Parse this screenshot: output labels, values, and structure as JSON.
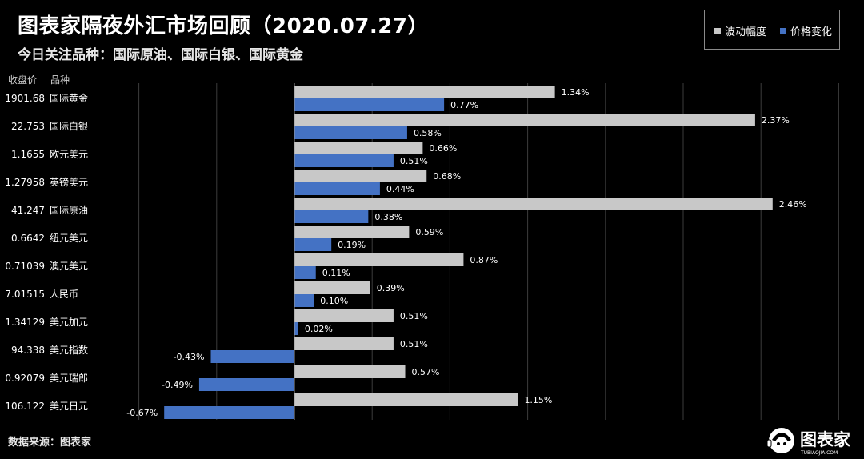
{
  "header": {
    "title": "图表家隔夜外汇市场回顾（2020.07.27）",
    "subtitle": "今日关注品种：国际原油、国际白银、国际黄金"
  },
  "legend": {
    "volatility_label": "波动幅度",
    "change_label": "价格变化",
    "volatility_color": "#c8c8c8",
    "change_color": "#4472c4"
  },
  "table_header": {
    "price": "收盘价",
    "name": "品种"
  },
  "footer": {
    "source": "数据来源：图表家",
    "logo_text": "图表家",
    "logo_subtext": "TUBIAOJIA.COM"
  },
  "chart_data": {
    "type": "bar",
    "orientation": "horizontal",
    "categories": [
      "国际黄金",
      "国际白银",
      "欧元美元",
      "英镑美元",
      "国际原油",
      "纽元美元",
      "澳元美元",
      "人民币",
      "美元加元",
      "美元指数",
      "美元瑞郎",
      "美元日元"
    ],
    "close_prices": [
      "1901.68",
      "22.753",
      "1.1655",
      "1.27958",
      "41.247",
      "0.6642",
      "0.71039",
      "7.01515",
      "1.34129",
      "94.338",
      "0.92079",
      "106.122"
    ],
    "series": [
      {
        "name": "波动幅度",
        "values": [
          1.34,
          2.37,
          0.66,
          0.68,
          2.46,
          0.59,
          0.87,
          0.39,
          0.51,
          0.51,
          0.57,
          1.15
        ],
        "labels": [
          "1.34%",
          "2.37%",
          "0.66%",
          "0.68%",
          "2.46%",
          "0.59%",
          "0.87%",
          "0.39%",
          "0.51%",
          "0.51%",
          "0.57%",
          "1.15%"
        ],
        "color": "#c8c8c8"
      },
      {
        "name": "价格变化",
        "values": [
          0.77,
          0.58,
          0.51,
          0.44,
          0.38,
          0.19,
          0.11,
          0.1,
          0.02,
          -0.43,
          -0.49,
          -0.67
        ],
        "labels": [
          "0.77%",
          "0.58%",
          "0.51%",
          "0.44%",
          "0.38%",
          "0.19%",
          "0.11%",
          "0.10%",
          "0.02%",
          "-0.43%",
          "-0.49%",
          "-0.67%"
        ],
        "color": "#4472c4"
      }
    ],
    "xlim": [
      -0.8,
      2.8
    ],
    "grid": true,
    "legend_position": "top-right"
  }
}
